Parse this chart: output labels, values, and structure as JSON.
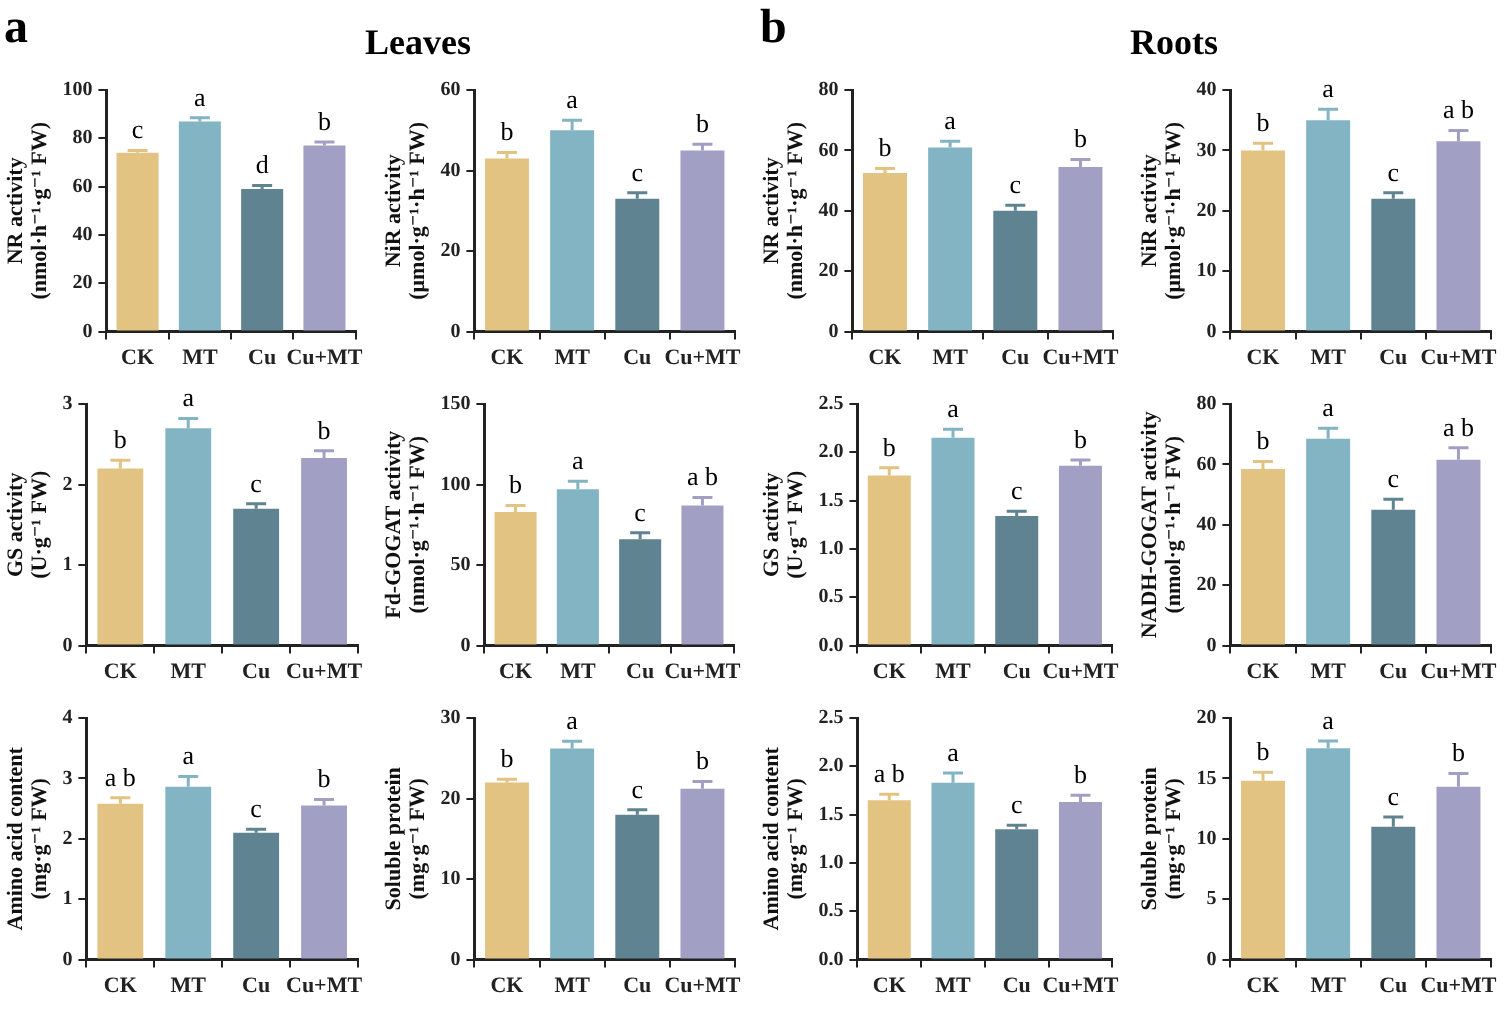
{
  "chart_data": [
    {
      "type": "bar",
      "title": "Leaves",
      "annotations": [
        "a",
        "c",
        "a",
        "d",
        "b"
      ],
      "ylabel": "NR activity\n(nmol·h⁻¹·g⁻¹ FW)",
      "categories": [
        "CK",
        "MT",
        "Cu",
        "Cu+MT"
      ],
      "values": [
        74,
        87,
        59,
        77
      ],
      "errors": [
        1,
        1.5,
        1.5,
        1.5
      ],
      "colors": [
        "#e2c382",
        "#82b4c4",
        "#5f8391",
        "#a29fc4"
      ],
      "ylim": [
        0,
        100
      ],
      "yticks": [
        0,
        20,
        40,
        60,
        80,
        100
      ],
      "grid": false
    },
    {
      "type": "bar",
      "annotations": [
        "b",
        "a",
        "c",
        "b"
      ],
      "ylabel": "NiR activity\n(μmol·g⁻¹·h⁻¹ FW)",
      "categories": [
        "CK",
        "MT",
        "Cu",
        "Cu+MT"
      ],
      "values": [
        43,
        50,
        33,
        45
      ],
      "errors": [
        1.5,
        2.5,
        1.5,
        1.5
      ],
      "colors": [
        "#e2c382",
        "#82b4c4",
        "#5f8391",
        "#a29fc4"
      ],
      "ylim": [
        0,
        60
      ],
      "yticks": [
        0,
        20,
        40,
        60
      ],
      "grid": false
    },
    {
      "type": "bar",
      "title": "Roots",
      "annotations": [
        "b",
        "b",
        "a",
        "c",
        "b"
      ],
      "ylabel": "NR activity\n(nmol·h⁻¹·g⁻¹ FW)",
      "categories": [
        "CK",
        "MT",
        "Cu",
        "Cu+MT"
      ],
      "values": [
        52.5,
        61,
        40,
        54.5
      ],
      "errors": [
        1.5,
        2,
        1.8,
        2.5
      ],
      "colors": [
        "#e2c382",
        "#82b4c4",
        "#5f8391",
        "#a29fc4"
      ],
      "ylim": [
        0,
        80
      ],
      "yticks": [
        0,
        20,
        40,
        60,
        80
      ],
      "grid": false
    },
    {
      "type": "bar",
      "annotations": [
        "b",
        "a",
        "c",
        "a b"
      ],
      "ylabel": "NiR activity\n(μmol·g⁻¹·h⁻¹ FW)",
      "categories": [
        "CK",
        "MT",
        "Cu",
        "Cu+MT"
      ],
      "values": [
        30,
        35,
        22,
        31.5
      ],
      "errors": [
        1.2,
        1.8,
        1,
        1.8
      ],
      "colors": [
        "#e2c382",
        "#82b4c4",
        "#5f8391",
        "#a29fc4"
      ],
      "ylim": [
        0,
        40
      ],
      "yticks": [
        0,
        10,
        20,
        30,
        40
      ],
      "grid": false
    },
    {
      "type": "bar",
      "annotations": [
        "b",
        "a",
        "c",
        "b"
      ],
      "ylabel": "GS activity\n(U·g⁻¹ FW)",
      "categories": [
        "CK",
        "MT",
        "Cu",
        "Cu+MT"
      ],
      "values": [
        2.2,
        2.7,
        1.7,
        2.33
      ],
      "errors": [
        0.1,
        0.12,
        0.06,
        0.09
      ],
      "colors": [
        "#e2c382",
        "#82b4c4",
        "#5f8391",
        "#a29fc4"
      ],
      "ylim": [
        0,
        3
      ],
      "yticks": [
        0,
        1,
        2,
        3
      ],
      "grid": false
    },
    {
      "type": "bar",
      "annotations": [
        "b",
        "a",
        "c",
        "a b"
      ],
      "ylabel": "Fd-GOGAT activity\n(nmol·g⁻¹·h⁻¹ FW)",
      "categories": [
        "CK",
        "MT",
        "Cu",
        "Cu+MT"
      ],
      "values": [
        83,
        97,
        66,
        87
      ],
      "errors": [
        4,
        5,
        4,
        5
      ],
      "colors": [
        "#e2c382",
        "#82b4c4",
        "#5f8391",
        "#a29fc4"
      ],
      "ylim": [
        0,
        150
      ],
      "yticks": [
        0,
        50,
        100,
        150
      ],
      "grid": false
    },
    {
      "type": "bar",
      "annotations": [
        "b",
        "a",
        "c",
        "b"
      ],
      "ylabel": "GS activity\n(U·g⁻¹ FW)",
      "categories": [
        "CK",
        "MT",
        "Cu",
        "Cu+MT"
      ],
      "values": [
        1.76,
        2.15,
        1.34,
        1.86
      ],
      "errors": [
        0.08,
        0.09,
        0.05,
        0.06
      ],
      "colors": [
        "#e2c382",
        "#82b4c4",
        "#5f8391",
        "#a29fc4"
      ],
      "ylim": [
        0,
        2.5
      ],
      "yticks": [
        {
          "value": 0,
          "label": "0.0"
        },
        {
          "value": 0.5,
          "label": "0.5"
        },
        {
          "value": 1,
          "label": "1.0"
        },
        {
          "value": 1.5,
          "label": "1.5"
        },
        {
          "value": 2,
          "label": "2.0"
        },
        {
          "value": 2.5,
          "label": "2.5"
        }
      ],
      "grid": false
    },
    {
      "type": "bar",
      "annotations": [
        "b",
        "a",
        "c",
        "a b"
      ],
      "ylabel": "NADH-GOGAT activity\n(nmol·g⁻¹·h⁻¹ FW)",
      "categories": [
        "CK",
        "MT",
        "Cu",
        "Cu+MT"
      ],
      "values": [
        58.5,
        68.5,
        45,
        61.5
      ],
      "errors": [
        2.5,
        3.5,
        3.5,
        4
      ],
      "colors": [
        "#e2c382",
        "#82b4c4",
        "#5f8391",
        "#a29fc4"
      ],
      "ylim": [
        0,
        80
      ],
      "yticks": [
        0,
        20,
        40,
        60,
        80
      ],
      "grid": false
    },
    {
      "type": "bar",
      "annotations": [
        "a b",
        "a",
        "c",
        "b"
      ],
      "ylabel": "Amino acid content\n(mg·g⁻¹ FW)",
      "categories": [
        "CK",
        "MT",
        "Cu",
        "Cu+MT"
      ],
      "values": [
        2.58,
        2.86,
        2.1,
        2.55
      ],
      "errors": [
        0.1,
        0.17,
        0.06,
        0.1
      ],
      "colors": [
        "#e2c382",
        "#82b4c4",
        "#5f8391",
        "#a29fc4"
      ],
      "ylim": [
        0,
        4
      ],
      "yticks": [
        0,
        1,
        2,
        3,
        4
      ],
      "grid": false
    },
    {
      "type": "bar",
      "annotations": [
        "b",
        "a",
        "c",
        "b"
      ],
      "ylabel": "Soluble protein\n(mg·g⁻¹ FW)",
      "categories": [
        "CK",
        "MT",
        "Cu",
        "Cu+MT"
      ],
      "values": [
        22,
        26.2,
        18,
        21.2
      ],
      "errors": [
        0.4,
        0.9,
        0.6,
        0.9
      ],
      "colors": [
        "#e2c382",
        "#82b4c4",
        "#5f8391",
        "#a29fc4"
      ],
      "ylim": [
        0,
        30
      ],
      "yticks": [
        0,
        10,
        20,
        30
      ],
      "grid": false
    },
    {
      "type": "bar",
      "annotations": [
        "a b",
        "a",
        "c",
        "b"
      ],
      "ylabel": "Amino acid content\n(mg·g⁻¹ FW)",
      "categories": [
        "CK",
        "MT",
        "Cu",
        "Cu+MT"
      ],
      "values": [
        1.65,
        1.83,
        1.35,
        1.63
      ],
      "errors": [
        0.06,
        0.1,
        0.04,
        0.07
      ],
      "colors": [
        "#e2c382",
        "#82b4c4",
        "#5f8391",
        "#a29fc4"
      ],
      "ylim": [
        0,
        2.5
      ],
      "yticks": [
        {
          "value": 0,
          "label": "0.0"
        },
        {
          "value": 0.5,
          "label": "0.5"
        },
        {
          "value": 1,
          "label": "1.0"
        },
        {
          "value": 1.5,
          "label": "1.5"
        },
        {
          "value": 2,
          "label": "2.0"
        },
        {
          "value": 2.5,
          "label": "2.5"
        }
      ],
      "grid": false
    },
    {
      "type": "bar",
      "annotations": [
        "b",
        "a",
        "c",
        "b"
      ],
      "ylabel": "Soluble protein\n(mg·g⁻¹ FW)",
      "categories": [
        "CK",
        "MT",
        "Cu",
        "Cu+MT"
      ],
      "values": [
        14.8,
        17.5,
        11,
        14.3
      ],
      "errors": [
        0.7,
        0.6,
        0.8,
        1.1
      ],
      "colors": [
        "#e2c382",
        "#82b4c4",
        "#5f8391",
        "#a29fc4"
      ],
      "ylim": [
        0,
        20
      ],
      "yticks": [
        0,
        5,
        10,
        15,
        20
      ],
      "grid": false
    }
  ]
}
